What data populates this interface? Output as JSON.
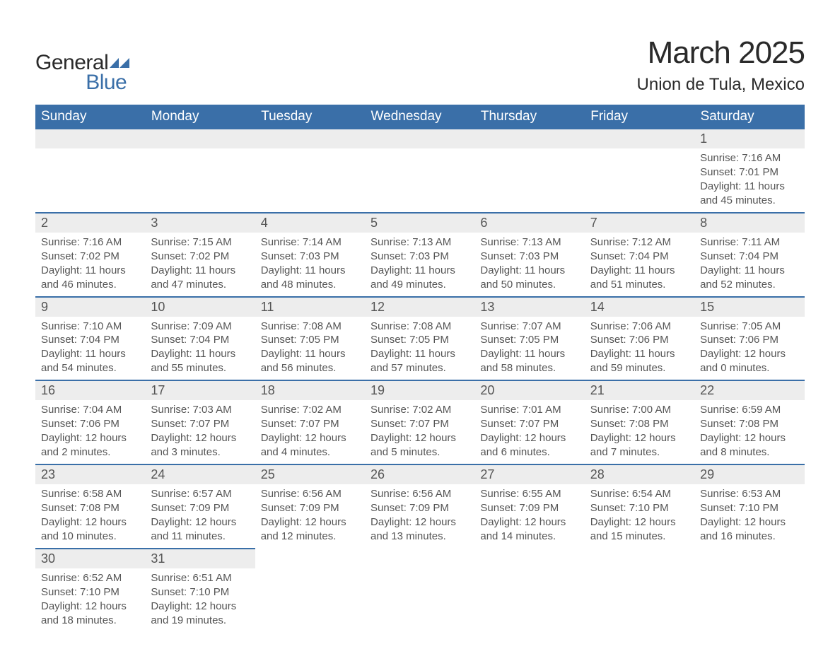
{
  "logo": {
    "word1": "General",
    "word2": "Blue",
    "icon_color": "#3a6fa8"
  },
  "title": "March 2025",
  "location": "Union de Tula, Mexico",
  "colors": {
    "header_bg": "#3a6fa8",
    "header_text": "#ffffff",
    "daynum_bg": "#ededed",
    "border": "#3a6fa8",
    "body_text": "#555555",
    "page_bg": "#ffffff"
  },
  "day_headers": [
    "Sunday",
    "Monday",
    "Tuesday",
    "Wednesday",
    "Thursday",
    "Friday",
    "Saturday"
  ],
  "weeks": [
    [
      null,
      null,
      null,
      null,
      null,
      null,
      {
        "n": "1",
        "sunrise": "Sunrise: 7:16 AM",
        "sunset": "Sunset: 7:01 PM",
        "daylight": "Daylight: 11 hours and 45 minutes."
      }
    ],
    [
      {
        "n": "2",
        "sunrise": "Sunrise: 7:16 AM",
        "sunset": "Sunset: 7:02 PM",
        "daylight": "Daylight: 11 hours and 46 minutes."
      },
      {
        "n": "3",
        "sunrise": "Sunrise: 7:15 AM",
        "sunset": "Sunset: 7:02 PM",
        "daylight": "Daylight: 11 hours and 47 minutes."
      },
      {
        "n": "4",
        "sunrise": "Sunrise: 7:14 AM",
        "sunset": "Sunset: 7:03 PM",
        "daylight": "Daylight: 11 hours and 48 minutes."
      },
      {
        "n": "5",
        "sunrise": "Sunrise: 7:13 AM",
        "sunset": "Sunset: 7:03 PM",
        "daylight": "Daylight: 11 hours and 49 minutes."
      },
      {
        "n": "6",
        "sunrise": "Sunrise: 7:13 AM",
        "sunset": "Sunset: 7:03 PM",
        "daylight": "Daylight: 11 hours and 50 minutes."
      },
      {
        "n": "7",
        "sunrise": "Sunrise: 7:12 AM",
        "sunset": "Sunset: 7:04 PM",
        "daylight": "Daylight: 11 hours and 51 minutes."
      },
      {
        "n": "8",
        "sunrise": "Sunrise: 7:11 AM",
        "sunset": "Sunset: 7:04 PM",
        "daylight": "Daylight: 11 hours and 52 minutes."
      }
    ],
    [
      {
        "n": "9",
        "sunrise": "Sunrise: 7:10 AM",
        "sunset": "Sunset: 7:04 PM",
        "daylight": "Daylight: 11 hours and 54 minutes."
      },
      {
        "n": "10",
        "sunrise": "Sunrise: 7:09 AM",
        "sunset": "Sunset: 7:04 PM",
        "daylight": "Daylight: 11 hours and 55 minutes."
      },
      {
        "n": "11",
        "sunrise": "Sunrise: 7:08 AM",
        "sunset": "Sunset: 7:05 PM",
        "daylight": "Daylight: 11 hours and 56 minutes."
      },
      {
        "n": "12",
        "sunrise": "Sunrise: 7:08 AM",
        "sunset": "Sunset: 7:05 PM",
        "daylight": "Daylight: 11 hours and 57 minutes."
      },
      {
        "n": "13",
        "sunrise": "Sunrise: 7:07 AM",
        "sunset": "Sunset: 7:05 PM",
        "daylight": "Daylight: 11 hours and 58 minutes."
      },
      {
        "n": "14",
        "sunrise": "Sunrise: 7:06 AM",
        "sunset": "Sunset: 7:06 PM",
        "daylight": "Daylight: 11 hours and 59 minutes."
      },
      {
        "n": "15",
        "sunrise": "Sunrise: 7:05 AM",
        "sunset": "Sunset: 7:06 PM",
        "daylight": "Daylight: 12 hours and 0 minutes."
      }
    ],
    [
      {
        "n": "16",
        "sunrise": "Sunrise: 7:04 AM",
        "sunset": "Sunset: 7:06 PM",
        "daylight": "Daylight: 12 hours and 2 minutes."
      },
      {
        "n": "17",
        "sunrise": "Sunrise: 7:03 AM",
        "sunset": "Sunset: 7:07 PM",
        "daylight": "Daylight: 12 hours and 3 minutes."
      },
      {
        "n": "18",
        "sunrise": "Sunrise: 7:02 AM",
        "sunset": "Sunset: 7:07 PM",
        "daylight": "Daylight: 12 hours and 4 minutes."
      },
      {
        "n": "19",
        "sunrise": "Sunrise: 7:02 AM",
        "sunset": "Sunset: 7:07 PM",
        "daylight": "Daylight: 12 hours and 5 minutes."
      },
      {
        "n": "20",
        "sunrise": "Sunrise: 7:01 AM",
        "sunset": "Sunset: 7:07 PM",
        "daylight": "Daylight: 12 hours and 6 minutes."
      },
      {
        "n": "21",
        "sunrise": "Sunrise: 7:00 AM",
        "sunset": "Sunset: 7:08 PM",
        "daylight": "Daylight: 12 hours and 7 minutes."
      },
      {
        "n": "22",
        "sunrise": "Sunrise: 6:59 AM",
        "sunset": "Sunset: 7:08 PM",
        "daylight": "Daylight: 12 hours and 8 minutes."
      }
    ],
    [
      {
        "n": "23",
        "sunrise": "Sunrise: 6:58 AM",
        "sunset": "Sunset: 7:08 PM",
        "daylight": "Daylight: 12 hours and 10 minutes."
      },
      {
        "n": "24",
        "sunrise": "Sunrise: 6:57 AM",
        "sunset": "Sunset: 7:09 PM",
        "daylight": "Daylight: 12 hours and 11 minutes."
      },
      {
        "n": "25",
        "sunrise": "Sunrise: 6:56 AM",
        "sunset": "Sunset: 7:09 PM",
        "daylight": "Daylight: 12 hours and 12 minutes."
      },
      {
        "n": "26",
        "sunrise": "Sunrise: 6:56 AM",
        "sunset": "Sunset: 7:09 PM",
        "daylight": "Daylight: 12 hours and 13 minutes."
      },
      {
        "n": "27",
        "sunrise": "Sunrise: 6:55 AM",
        "sunset": "Sunset: 7:09 PM",
        "daylight": "Daylight: 12 hours and 14 minutes."
      },
      {
        "n": "28",
        "sunrise": "Sunrise: 6:54 AM",
        "sunset": "Sunset: 7:10 PM",
        "daylight": "Daylight: 12 hours and 15 minutes."
      },
      {
        "n": "29",
        "sunrise": "Sunrise: 6:53 AM",
        "sunset": "Sunset: 7:10 PM",
        "daylight": "Daylight: 12 hours and 16 minutes."
      }
    ],
    [
      {
        "n": "30",
        "sunrise": "Sunrise: 6:52 AM",
        "sunset": "Sunset: 7:10 PM",
        "daylight": "Daylight: 12 hours and 18 minutes."
      },
      {
        "n": "31",
        "sunrise": "Sunrise: 6:51 AM",
        "sunset": "Sunset: 7:10 PM",
        "daylight": "Daylight: 12 hours and 19 minutes."
      },
      null,
      null,
      null,
      null,
      null
    ]
  ]
}
